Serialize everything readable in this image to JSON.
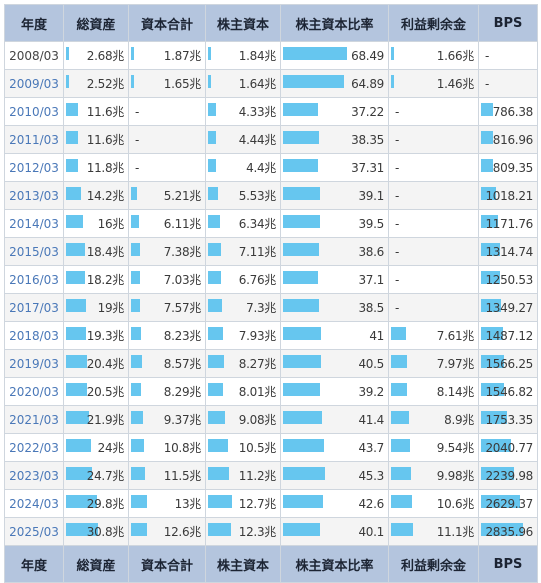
{
  "headers": [
    "年度",
    "総資産",
    "資本合計",
    "株主資本",
    "株主資本比率",
    "利益剰余金",
    "BPS"
  ],
  "footer": [
    "年度",
    "総資産",
    "資本合計",
    "株主資本",
    "株主資本比率",
    "利益剰余金",
    "BPS"
  ],
  "colors": {
    "header_bg": "#b4c5de",
    "bar": "#66c6ef",
    "link": "#4a78b8"
  },
  "rows": [
    {
      "year": "2008/03",
      "link": false,
      "total_assets": "2.68兆",
      "total_assets_num": 2.68,
      "equity_total": "1.87兆",
      "equity_total_num": 1.87,
      "shareholders_equity": "1.84兆",
      "shareholders_equity_num": 1.84,
      "equity_ratio": "68.49",
      "equity_ratio_num": 68.49,
      "retained_earnings": "1.66兆",
      "retained_earnings_num": 1.66,
      "bps": "-",
      "bps_num": null
    },
    {
      "year": "2009/03",
      "link": true,
      "total_assets": "2.52兆",
      "total_assets_num": 2.52,
      "equity_total": "1.65兆",
      "equity_total_num": 1.65,
      "shareholders_equity": "1.64兆",
      "shareholders_equity_num": 1.64,
      "equity_ratio": "64.89",
      "equity_ratio_num": 64.89,
      "retained_earnings": "1.46兆",
      "retained_earnings_num": 1.46,
      "bps": "-",
      "bps_num": null
    },
    {
      "year": "2010/03",
      "link": true,
      "total_assets": "11.6兆",
      "total_assets_num": 11.6,
      "equity_total": "-",
      "equity_total_num": null,
      "shareholders_equity": "4.33兆",
      "shareholders_equity_num": 4.33,
      "equity_ratio": "37.22",
      "equity_ratio_num": 37.22,
      "retained_earnings": "-",
      "retained_earnings_num": null,
      "bps": "786.38",
      "bps_num": 786.38
    },
    {
      "year": "2011/03",
      "link": true,
      "total_assets": "11.6兆",
      "total_assets_num": 11.6,
      "equity_total": "-",
      "equity_total_num": null,
      "shareholders_equity": "4.44兆",
      "shareholders_equity_num": 4.44,
      "equity_ratio": "38.35",
      "equity_ratio_num": 38.35,
      "retained_earnings": "-",
      "retained_earnings_num": null,
      "bps": "816.96",
      "bps_num": 816.96
    },
    {
      "year": "2012/03",
      "link": true,
      "total_assets": "11.8兆",
      "total_assets_num": 11.8,
      "equity_total": "-",
      "equity_total_num": null,
      "shareholders_equity": "4.4兆",
      "shareholders_equity_num": 4.4,
      "equity_ratio": "37.31",
      "equity_ratio_num": 37.31,
      "retained_earnings": "-",
      "retained_earnings_num": null,
      "bps": "809.35",
      "bps_num": 809.35
    },
    {
      "year": "2013/03",
      "link": true,
      "total_assets": "14.2兆",
      "total_assets_num": 14.2,
      "equity_total": "5.21兆",
      "equity_total_num": 5.21,
      "shareholders_equity": "5.53兆",
      "shareholders_equity_num": 5.53,
      "equity_ratio": "39.1",
      "equity_ratio_num": 39.1,
      "retained_earnings": "-",
      "retained_earnings_num": null,
      "bps": "1018.21",
      "bps_num": 1018.21
    },
    {
      "year": "2014/03",
      "link": true,
      "total_assets": "16兆",
      "total_assets_num": 16,
      "equity_total": "6.11兆",
      "equity_total_num": 6.11,
      "shareholders_equity": "6.34兆",
      "shareholders_equity_num": 6.34,
      "equity_ratio": "39.5",
      "equity_ratio_num": 39.5,
      "retained_earnings": "-",
      "retained_earnings_num": null,
      "bps": "1171.76",
      "bps_num": 1171.76
    },
    {
      "year": "2015/03",
      "link": true,
      "total_assets": "18.4兆",
      "total_assets_num": 18.4,
      "equity_total": "7.38兆",
      "equity_total_num": 7.38,
      "shareholders_equity": "7.11兆",
      "shareholders_equity_num": 7.11,
      "equity_ratio": "38.6",
      "equity_ratio_num": 38.6,
      "retained_earnings": "-",
      "retained_earnings_num": null,
      "bps": "1314.74",
      "bps_num": 1314.74
    },
    {
      "year": "2016/03",
      "link": true,
      "total_assets": "18.2兆",
      "total_assets_num": 18.2,
      "equity_total": "7.03兆",
      "equity_total_num": 7.03,
      "shareholders_equity": "6.76兆",
      "shareholders_equity_num": 6.76,
      "equity_ratio": "37.1",
      "equity_ratio_num": 37.1,
      "retained_earnings": "-",
      "retained_earnings_num": null,
      "bps": "1250.53",
      "bps_num": 1250.53
    },
    {
      "year": "2017/03",
      "link": true,
      "total_assets": "19兆",
      "total_assets_num": 19,
      "equity_total": "7.57兆",
      "equity_total_num": 7.57,
      "shareholders_equity": "7.3兆",
      "shareholders_equity_num": 7.3,
      "equity_ratio": "38.5",
      "equity_ratio_num": 38.5,
      "retained_earnings": "-",
      "retained_earnings_num": null,
      "bps": "1349.27",
      "bps_num": 1349.27
    },
    {
      "year": "2018/03",
      "link": true,
      "total_assets": "19.3兆",
      "total_assets_num": 19.3,
      "equity_total": "8.23兆",
      "equity_total_num": 8.23,
      "shareholders_equity": "7.93兆",
      "shareholders_equity_num": 7.93,
      "equity_ratio": "41",
      "equity_ratio_num": 41,
      "retained_earnings": "7.61兆",
      "retained_earnings_num": 7.61,
      "bps": "1487.12",
      "bps_num": 1487.12
    },
    {
      "year": "2019/03",
      "link": true,
      "total_assets": "20.4兆",
      "total_assets_num": 20.4,
      "equity_total": "8.57兆",
      "equity_total_num": 8.57,
      "shareholders_equity": "8.27兆",
      "shareholders_equity_num": 8.27,
      "equity_ratio": "40.5",
      "equity_ratio_num": 40.5,
      "retained_earnings": "7.97兆",
      "retained_earnings_num": 7.97,
      "bps": "1566.25",
      "bps_num": 1566.25
    },
    {
      "year": "2020/03",
      "link": true,
      "total_assets": "20.5兆",
      "total_assets_num": 20.5,
      "equity_total": "8.29兆",
      "equity_total_num": 8.29,
      "shareholders_equity": "8.01兆",
      "shareholders_equity_num": 8.01,
      "equity_ratio": "39.2",
      "equity_ratio_num": 39.2,
      "retained_earnings": "8.14兆",
      "retained_earnings_num": 8.14,
      "bps": "1546.82",
      "bps_num": 1546.82
    },
    {
      "year": "2021/03",
      "link": true,
      "total_assets": "21.9兆",
      "total_assets_num": 21.9,
      "equity_total": "9.37兆",
      "equity_total_num": 9.37,
      "shareholders_equity": "9.08兆",
      "shareholders_equity_num": 9.08,
      "equity_ratio": "41.4",
      "equity_ratio_num": 41.4,
      "retained_earnings": "8.9兆",
      "retained_earnings_num": 8.9,
      "bps": "1753.35",
      "bps_num": 1753.35
    },
    {
      "year": "2022/03",
      "link": true,
      "total_assets": "24兆",
      "total_assets_num": 24,
      "equity_total": "10.8兆",
      "equity_total_num": 10.8,
      "shareholders_equity": "10.5兆",
      "shareholders_equity_num": 10.5,
      "equity_ratio": "43.7",
      "equity_ratio_num": 43.7,
      "retained_earnings": "9.54兆",
      "retained_earnings_num": 9.54,
      "bps": "2040.77",
      "bps_num": 2040.77
    },
    {
      "year": "2023/03",
      "link": true,
      "total_assets": "24.7兆",
      "total_assets_num": 24.7,
      "equity_total": "11.5兆",
      "equity_total_num": 11.5,
      "shareholders_equity": "11.2兆",
      "shareholders_equity_num": 11.2,
      "equity_ratio": "45.3",
      "equity_ratio_num": 45.3,
      "retained_earnings": "9.98兆",
      "retained_earnings_num": 9.98,
      "bps": "2239.98",
      "bps_num": 2239.98
    },
    {
      "year": "2024/03",
      "link": true,
      "total_assets": "29.8兆",
      "total_assets_num": 29.8,
      "equity_total": "13兆",
      "equity_total_num": 13,
      "shareholders_equity": "12.7兆",
      "shareholders_equity_num": 12.7,
      "equity_ratio": "42.6",
      "equity_ratio_num": 42.6,
      "retained_earnings": "10.6兆",
      "retained_earnings_num": 10.6,
      "bps": "2629.37",
      "bps_num": 2629.37
    },
    {
      "year": "2025/03",
      "link": true,
      "total_assets": "30.8兆",
      "total_assets_num": 30.8,
      "equity_total": "12.6兆",
      "equity_total_num": 12.6,
      "shareholders_equity": "12.3兆",
      "shareholders_equity_num": 12.3,
      "equity_ratio": "40.1",
      "equity_ratio_num": 40.1,
      "retained_earnings": "11.1兆",
      "retained_earnings_num": 11.1,
      "bps": "2835.96",
      "bps_num": 2835.96
    }
  ]
}
